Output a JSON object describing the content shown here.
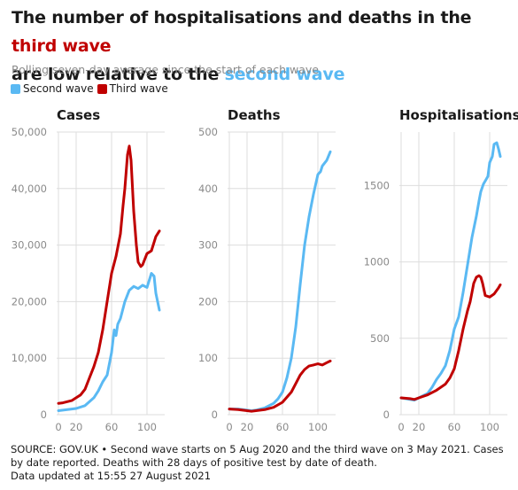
{
  "colors": {
    "second": "#5ab9f3",
    "third": "#c00000",
    "grid": "#dddddd",
    "axis_text": "#8a8a8a"
  },
  "header": {
    "title_part1": "The number of hospitalisations and deaths in the",
    "title_highlight1": "third wave",
    "title_part2": "are low relative to the",
    "title_highlight2": "second wave",
    "subtitle": "Rolling seven-day average since the start of each wave"
  },
  "legend": {
    "second": "Second wave",
    "third": "Third wave"
  },
  "footer": {
    "line1": "SOURCE: GOV.UK • Second wave starts on 5 Aug 2020 and the third wave on 3 May 2021. Cases by date reported. Deaths with 28 days of positive test by date of death.",
    "line2": "Data updated at 15:55 27 August 2021"
  },
  "chart_data": [
    {
      "type": "line",
      "title": "Cases",
      "xticks": [
        0,
        20,
        60,
        100
      ],
      "yticks": [
        0,
        10000,
        20000,
        30000,
        40000,
        50000
      ],
      "ytick_labels": [
        "0",
        "10,000",
        "20,000",
        "30,000",
        "40,000",
        "50,000"
      ],
      "xlim": [
        -2,
        120
      ],
      "ylim": [
        0,
        50000
      ],
      "series": [
        {
          "name": "Second wave",
          "key": "second",
          "x": [
            0,
            10,
            20,
            30,
            40,
            45,
            50,
            55,
            60,
            63,
            65,
            67,
            70,
            75,
            80,
            85,
            90,
            95,
            100,
            105,
            108,
            110,
            114
          ],
          "y": [
            700,
            900,
            1100,
            1600,
            3000,
            4200,
            5800,
            7000,
            11000,
            15000,
            14000,
            16000,
            17000,
            20000,
            22000,
            22700,
            22300,
            22900,
            22500,
            25000,
            24500,
            21500,
            18500
          ]
        },
        {
          "name": "Third wave",
          "key": "third",
          "x": [
            0,
            5,
            10,
            15,
            20,
            25,
            30,
            35,
            40,
            45,
            50,
            55,
            60,
            65,
            70,
            73,
            75,
            78,
            80,
            82,
            85,
            88,
            90,
            93,
            95,
            100,
            103,
            105,
            108,
            110,
            114
          ],
          "y": [
            2000,
            2100,
            2300,
            2500,
            3000,
            3500,
            4500,
            6500,
            8500,
            11000,
            15000,
            20000,
            25000,
            28000,
            32000,
            37000,
            40000,
            46000,
            47500,
            45000,
            36000,
            30000,
            27000,
            26200,
            26500,
            28500,
            28800,
            29000,
            30500,
            31500,
            32500
          ]
        }
      ]
    },
    {
      "type": "line",
      "title": "Deaths",
      "xticks": [
        0,
        20,
        60,
        100
      ],
      "yticks": [
        0,
        100,
        200,
        300,
        400,
        500
      ],
      "ytick_labels": [
        "0",
        "100",
        "200",
        "300",
        "400",
        "500"
      ],
      "xlim": [
        -2,
        120
      ],
      "ylim": [
        0,
        500
      ],
      "series": [
        {
          "name": "Second wave",
          "key": "second",
          "x": [
            0,
            10,
            20,
            25,
            30,
            40,
            50,
            55,
            60,
            65,
            70,
            75,
            80,
            85,
            90,
            95,
            100,
            103,
            105,
            110,
            114
          ],
          "y": [
            10,
            10,
            8,
            7,
            8,
            12,
            20,
            28,
            40,
            65,
            100,
            155,
            230,
            300,
            350,
            390,
            425,
            430,
            440,
            450,
            465
          ]
        },
        {
          "name": "Third wave",
          "key": "third",
          "x": [
            0,
            10,
            20,
            25,
            30,
            40,
            50,
            60,
            70,
            75,
            80,
            85,
            90,
            95,
            100,
            105,
            110,
            114
          ],
          "y": [
            10,
            9,
            7,
            6,
            7,
            9,
            13,
            22,
            40,
            55,
            70,
            80,
            86,
            88,
            90,
            88,
            92,
            95
          ]
        }
      ]
    },
    {
      "type": "line",
      "title": "Hospitalisations",
      "xticks": [
        0,
        20,
        60,
        100
      ],
      "yticks": [
        0,
        500,
        1000,
        1500
      ],
      "ytick_labels": [
        "0",
        "500",
        "1000",
        "1500"
      ],
      "xlim": [
        -2,
        120
      ],
      "ylim": [
        0,
        1850
      ],
      "series": [
        {
          "name": "Second wave",
          "key": "second",
          "x": [
            0,
            10,
            15,
            20,
            30,
            35,
            40,
            45,
            50,
            55,
            60,
            65,
            70,
            75,
            80,
            85,
            88,
            90,
            93,
            95,
            98,
            100,
            103,
            105,
            108,
            110,
            112
          ],
          "y": [
            110,
            100,
            95,
            110,
            140,
            180,
            230,
            270,
            320,
            420,
            560,
            640,
            800,
            980,
            1160,
            1300,
            1400,
            1460,
            1510,
            1530,
            1560,
            1650,
            1690,
            1770,
            1780,
            1740,
            1690
          ]
        },
        {
          "name": "Third wave",
          "key": "third",
          "x": [
            0,
            10,
            15,
            20,
            30,
            40,
            50,
            55,
            60,
            65,
            70,
            75,
            78,
            80,
            82,
            85,
            88,
            90,
            92,
            95,
            100,
            105,
            110,
            112
          ],
          "y": [
            110,
            105,
            100,
            110,
            130,
            160,
            200,
            240,
            300,
            420,
            560,
            680,
            740,
            800,
            860,
            900,
            910,
            900,
            860,
            780,
            770,
            790,
            830,
            850
          ]
        }
      ]
    }
  ]
}
